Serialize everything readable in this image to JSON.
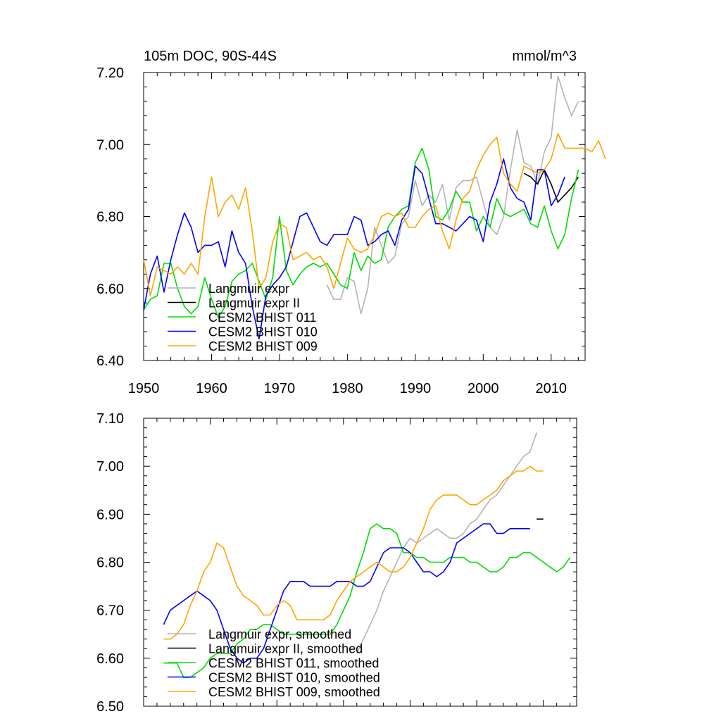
{
  "chart_data": [
    {
      "type": "line",
      "title": "105m DOC, 90S-44S",
      "units": "mmol/m^3",
      "xlim": [
        1950,
        2015
      ],
      "ylim": [
        6.4,
        7.2
      ],
      "x_ticks": [
        "1950",
        "1960",
        "1970",
        "1980",
        "1990",
        "2000",
        "2010"
      ],
      "y_ticks": [
        "6.40",
        "6.60",
        "6.80",
        "7.00",
        "7.20"
      ],
      "legend_position": "bottom-left",
      "grid": false,
      "series": [
        {
          "name": "Langmuir expr",
          "color": "#b4b4b4",
          "x_start": 1977,
          "values": [
            6.61,
            6.57,
            6.57,
            6.63,
            6.62,
            6.53,
            6.6,
            6.77,
            6.72,
            6.67,
            6.69,
            6.78,
            6.8,
            6.9,
            6.83,
            6.86,
            6.84,
            6.89,
            6.79,
            6.88,
            6.9,
            6.9,
            6.91,
            6.84,
            6.77,
            6.75,
            6.8,
            6.93,
            7.04,
            6.95,
            6.94,
            6.89,
            6.98,
            7.02,
            7.19,
            7.13,
            7.08,
            7.12
          ]
        },
        {
          "name": "Langmuir expr II",
          "color": "#000000",
          "x_start": 2006,
          "values": [
            6.92,
            6.91,
            6.89,
            6.93,
            6.89,
            6.84,
            6.86,
            6.88,
            6.91
          ]
        },
        {
          "name": "CESM2 BHIST 011",
          "color": "#00dd00",
          "x_start": 1950,
          "values": [
            6.54,
            6.57,
            6.58,
            6.67,
            6.67,
            6.6,
            6.55,
            6.53,
            6.55,
            6.63,
            6.57,
            6.52,
            6.55,
            6.62,
            6.64,
            6.65,
            6.67,
            6.62,
            6.57,
            6.63,
            6.8,
            6.65,
            6.61,
            6.64,
            6.66,
            6.67,
            6.66,
            6.67,
            6.64,
            6.61,
            6.6,
            6.7,
            6.65,
            6.69,
            6.67,
            6.68,
            6.77,
            6.8,
            6.82,
            6.83,
            6.95,
            6.99,
            6.93,
            6.8,
            6.79,
            6.82,
            6.87,
            6.84,
            6.84,
            6.76,
            6.8,
            6.77,
            6.85,
            6.81,
            6.8,
            6.81,
            6.82,
            6.78,
            6.77,
            6.83,
            6.76,
            6.71,
            6.75,
            6.85,
            6.93
          ]
        },
        {
          "name": "CESM2 BHIST 010",
          "color": "#0000ff",
          "x_start": 1950,
          "values": [
            6.54,
            6.64,
            6.69,
            6.59,
            6.68,
            6.75,
            6.81,
            6.77,
            6.7,
            6.72,
            6.72,
            6.73,
            6.66,
            6.76,
            6.7,
            6.67,
            6.55,
            6.46,
            6.58,
            6.61,
            6.63,
            6.66,
            6.73,
            6.8,
            6.81,
            6.77,
            6.73,
            6.72,
            6.75,
            6.75,
            6.75,
            6.8,
            6.79,
            6.72,
            6.73,
            6.75,
            6.76,
            6.72,
            6.79,
            6.82,
            6.94,
            6.92,
            6.85,
            6.78,
            6.78,
            6.77,
            6.76,
            6.78,
            6.8,
            6.79,
            6.73,
            6.84,
            6.89,
            6.96,
            6.88,
            6.85,
            6.84,
            6.79,
            6.93,
            6.93,
            6.83,
            6.86,
            6.91
          ]
        },
        {
          "name": "CESM2 BHIST 009",
          "color": "#ffa500",
          "x_start": 1950,
          "values": [
            6.68,
            6.58,
            6.66,
            6.65,
            6.64,
            6.66,
            6.64,
            6.67,
            6.64,
            6.8,
            6.91,
            6.8,
            6.84,
            6.86,
            6.82,
            6.88,
            6.76,
            6.6,
            6.63,
            6.73,
            6.78,
            6.77,
            6.68,
            6.69,
            6.7,
            6.68,
            6.69,
            6.66,
            6.6,
            6.67,
            6.74,
            6.71,
            6.7,
            6.71,
            6.75,
            6.8,
            6.81,
            6.8,
            6.81,
            6.77,
            6.77,
            6.8,
            6.82,
            6.83,
            6.76,
            6.71,
            6.79,
            6.85,
            6.87,
            6.93,
            6.97,
            7.0,
            7.02,
            6.92,
            6.89,
            6.87,
            6.94,
            6.93,
            6.92,
            6.93,
            6.96,
            7.03,
            6.99,
            6.99,
            6.99,
            6.99,
            6.98,
            7.01,
            6.96
          ]
        }
      ]
    },
    {
      "type": "line",
      "xlim": [
        1950,
        2015
      ],
      "ylim": [
        6.5,
        7.1
      ],
      "x_ticks": [
        "",
        "",
        "",
        "",
        "",
        "",
        ""
      ],
      "y_ticks": [
        "6.50",
        "6.60",
        "6.70",
        "6.80",
        "6.90",
        "7.00",
        "7.10"
      ],
      "legend_position": "bottom-left",
      "grid": false,
      "series": [
        {
          "name": "Langmuir expr, smoothed",
          "color": "#b4b4b4",
          "x_start": 1982,
          "values": [
            6.61,
            6.64,
            6.67,
            6.7,
            6.74,
            6.77,
            6.8,
            6.83,
            6.85,
            6.84,
            6.85,
            6.86,
            6.87,
            6.86,
            6.85,
            6.85,
            6.86,
            6.88,
            6.89,
            6.91,
            6.93,
            6.94,
            6.96,
            6.98,
            7.0,
            7.02,
            7.03,
            7.07
          ]
        },
        {
          "name": "Langmuir expr II, smoothed",
          "color": "#000000",
          "x_start": 2009,
          "values": [
            6.89,
            6.89
          ]
        },
        {
          "name": "CESM2 BHIST 011, smoothed",
          "color": "#00dd00",
          "x_start": 1953,
          "values": [
            6.59,
            6.59,
            6.59,
            6.56,
            6.56,
            6.57,
            6.58,
            6.6,
            6.61,
            6.61,
            6.61,
            6.63,
            6.64,
            6.66,
            6.66,
            6.67,
            6.67,
            6.66,
            6.65,
            6.65,
            6.65,
            6.65,
            6.65,
            6.65,
            6.65,
            6.65,
            6.67,
            6.7,
            6.73,
            6.78,
            6.82,
            6.87,
            6.88,
            6.87,
            6.87,
            6.86,
            6.82,
            6.82,
            6.81,
            6.81,
            6.8,
            6.8,
            6.8,
            6.81,
            6.81,
            6.81,
            6.8,
            6.8,
            6.79,
            6.78,
            6.78,
            6.79,
            6.81,
            6.81,
            6.82,
            6.82,
            6.81,
            6.8,
            6.79,
            6.78,
            6.79,
            6.81
          ]
        },
        {
          "name": "CESM2 BHIST 010, smoothed",
          "color": "#0000ff",
          "x_start": 1953,
          "values": [
            6.67,
            6.7,
            6.71,
            6.72,
            6.73,
            6.74,
            6.73,
            6.72,
            6.7,
            6.66,
            6.62,
            6.6,
            6.59,
            6.6,
            6.6,
            6.62,
            6.66,
            6.7,
            6.74,
            6.76,
            6.76,
            6.76,
            6.75,
            6.75,
            6.75,
            6.75,
            6.76,
            6.76,
            6.76,
            6.75,
            6.75,
            6.76,
            6.79,
            6.82,
            6.83,
            6.83,
            6.83,
            6.82,
            6.8,
            6.78,
            6.78,
            6.77,
            6.78,
            6.8,
            6.84,
            6.85,
            6.86,
            6.87,
            6.88,
            6.88,
            6.86,
            6.86,
            6.87,
            6.87,
            6.87,
            6.87
          ]
        },
        {
          "name": "CESM2 BHIST 009, smoothed",
          "color": "#ffa500",
          "x_start": 1953,
          "values": [
            6.64,
            6.64,
            6.65,
            6.67,
            6.71,
            6.74,
            6.78,
            6.8,
            6.84,
            6.83,
            6.79,
            6.75,
            6.73,
            6.72,
            6.71,
            6.69,
            6.69,
            6.71,
            6.72,
            6.71,
            6.68,
            6.68,
            6.68,
            6.68,
            6.68,
            6.69,
            6.72,
            6.74,
            6.76,
            6.77,
            6.78,
            6.79,
            6.8,
            6.79,
            6.78,
            6.78,
            6.79,
            6.81,
            6.84,
            6.87,
            6.91,
            6.93,
            6.94,
            6.94,
            6.94,
            6.93,
            6.92,
            6.92,
            6.93,
            6.94,
            6.95,
            6.97,
            6.98,
            6.99,
            6.99,
            7.0,
            6.99,
            6.99
          ]
        }
      ]
    }
  ]
}
